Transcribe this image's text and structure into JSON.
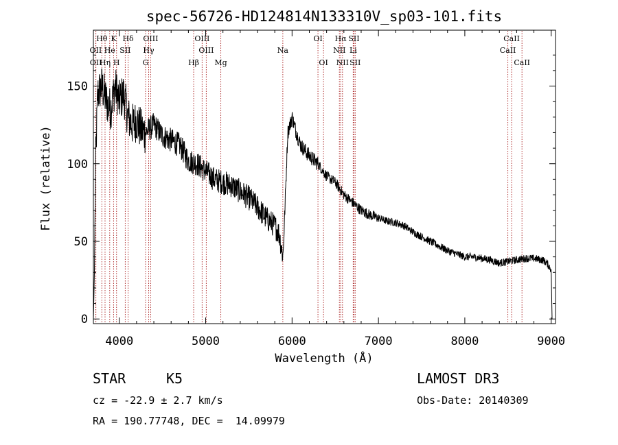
{
  "chart_data": {
    "type": "line",
    "title": "spec-56726-HD124814N133310V_sp03-101.fits",
    "xlabel": "Wavelength (Å)",
    "ylabel": "Flux (relative)",
    "xlim": [
      3700,
      9050
    ],
    "ylim": [
      -3,
      186
    ],
    "xticks": [
      4000,
      5000,
      6000,
      7000,
      8000,
      9000
    ],
    "yticks": [
      0,
      50,
      100,
      150
    ],
    "xtick_labels": [
      "4000",
      "5000",
      "6000",
      "7000",
      "8000",
      "9000"
    ],
    "ytick_labels": [
      "0",
      "50",
      "100",
      "150"
    ],
    "spectrum_anchors": [
      [
        3700,
        0
      ],
      [
        3712,
        30
      ],
      [
        3725,
        100
      ],
      [
        3750,
        145
      ],
      [
        3800,
        150
      ],
      [
        3850,
        140
      ],
      [
        3900,
        135
      ],
      [
        3950,
        150
      ],
      [
        4000,
        140
      ],
      [
        4050,
        145
      ],
      [
        4100,
        130
      ],
      [
        4150,
        125
      ],
      [
        4200,
        128
      ],
      [
        4250,
        122
      ],
      [
        4300,
        120
      ],
      [
        4400,
        125
      ],
      [
        4500,
        118
      ],
      [
        4600,
        115
      ],
      [
        4700,
        112
      ],
      [
        4800,
        102
      ],
      [
        4900,
        100
      ],
      [
        5000,
        95
      ],
      [
        5100,
        90
      ],
      [
        5200,
        88
      ],
      [
        5300,
        86
      ],
      [
        5400,
        82
      ],
      [
        5500,
        78
      ],
      [
        5600,
        72
      ],
      [
        5700,
        65
      ],
      [
        5800,
        60
      ],
      [
        5850,
        55
      ],
      [
        5880,
        45
      ],
      [
        5895,
        40
      ],
      [
        5910,
        60
      ],
      [
        5950,
        120
      ],
      [
        6000,
        130
      ],
      [
        6050,
        120
      ],
      [
        6100,
        112
      ],
      [
        6200,
        105
      ],
      [
        6300,
        100
      ],
      [
        6400,
        92
      ],
      [
        6500,
        88
      ],
      [
        6600,
        80
      ],
      [
        6700,
        75
      ],
      [
        6800,
        70
      ],
      [
        6900,
        67
      ],
      [
        7000,
        65
      ],
      [
        7100,
        63
      ],
      [
        7200,
        62
      ],
      [
        7300,
        60
      ],
      [
        7400,
        56
      ],
      [
        7500,
        53
      ],
      [
        7600,
        50
      ],
      [
        7700,
        47
      ],
      [
        7800,
        44
      ],
      [
        7900,
        42
      ],
      [
        8000,
        40
      ],
      [
        8100,
        40
      ],
      [
        8200,
        39
      ],
      [
        8300,
        38
      ],
      [
        8400,
        36
      ],
      [
        8500,
        37
      ],
      [
        8600,
        38
      ],
      [
        8700,
        39
      ],
      [
        8800,
        39
      ],
      [
        8900,
        38
      ],
      [
        8950,
        36
      ],
      [
        9000,
        32
      ],
      [
        9010,
        0
      ]
    ],
    "spectral_lines": [
      {
        "label": "Hθ",
        "wavelength": 3798,
        "row": 1
      },
      {
        "label": "OII",
        "wavelength": 3727,
        "row": 2
      },
      {
        "label": "OII",
        "wavelength": 3729,
        "row": 3
      },
      {
        "label": "Hη",
        "wavelength": 3835,
        "row": 3
      },
      {
        "label": "He",
        "wavelength": 3889,
        "row": 2
      },
      {
        "label": "K",
        "wavelength": 3934,
        "row": 1
      },
      {
        "label": "SII",
        "wavelength": 4069,
        "row": 2
      },
      {
        "label": "H",
        "wavelength": 3968,
        "row": 3
      },
      {
        "label": "Hδ",
        "wavelength": 4102,
        "row": 1
      },
      {
        "label": "OIII",
        "wavelength": 4363,
        "row": 1
      },
      {
        "label": "Hγ",
        "wavelength": 4340,
        "row": 2
      },
      {
        "label": "G",
        "wavelength": 4304,
        "row": 3
      },
      {
        "label": "Hβ",
        "wavelength": 4861,
        "row": 3
      },
      {
        "label": "OIII",
        "wavelength": 4959,
        "row": 1
      },
      {
        "label": "OIII",
        "wavelength": 5007,
        "row": 2
      },
      {
        "label": "Mg",
        "wavelength": 5175,
        "row": 3
      },
      {
        "label": "Na",
        "wavelength": 5893,
        "row": 2
      },
      {
        "label": "OI",
        "wavelength": 6300,
        "row": 1
      },
      {
        "label": "OI",
        "wavelength": 6364,
        "row": 3
      },
      {
        "label": "Hα",
        "wavelength": 6563,
        "row": 1
      },
      {
        "label": "NII",
        "wavelength": 6548,
        "row": 2
      },
      {
        "label": "NII",
        "wavelength": 6584,
        "row": 3
      },
      {
        "label": "SII",
        "wavelength": 6717,
        "row": 1
      },
      {
        "label": "Li",
        "wavelength": 6708,
        "row": 2
      },
      {
        "label": "SII",
        "wavelength": 6731,
        "row": 3
      },
      {
        "label": "CaII",
        "wavelength": 8542,
        "row": 1
      },
      {
        "label": "CaII",
        "wavelength": 8498,
        "row": 2
      },
      {
        "label": "CaII",
        "wavelength": 8662,
        "row": 3
      }
    ],
    "colors": {
      "spectrum": "#000000",
      "line_marker": "#b03030",
      "axes": "#000000"
    }
  },
  "info": {
    "object_class": "STAR",
    "subclass": "K5",
    "survey": "LAMOST DR3",
    "redshift": "cz = -22.9 ± 2.7 km/s",
    "obs_date": "Obs-Date: 20140309",
    "coords": "RA = 190.77748, DEC =  14.09979"
  }
}
